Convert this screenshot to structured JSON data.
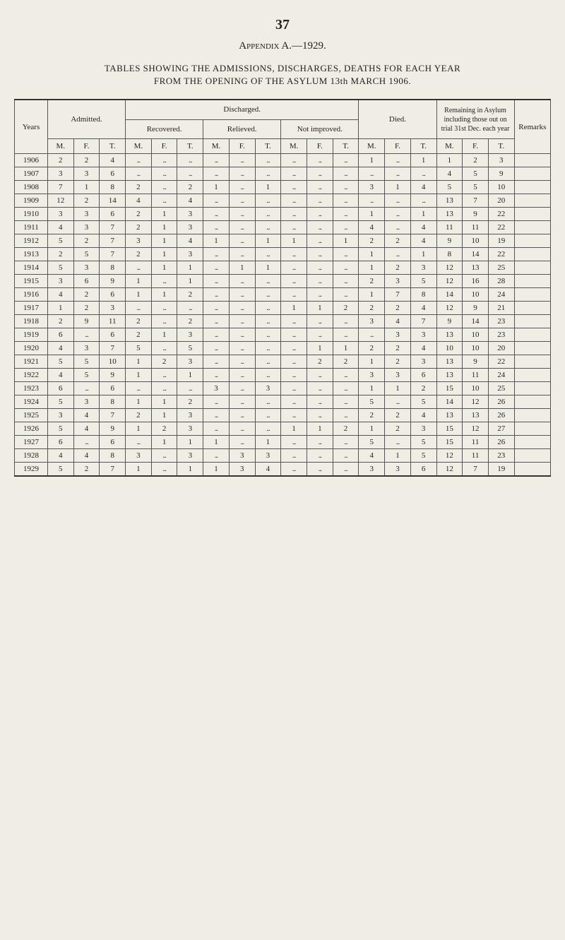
{
  "page_number": "37",
  "appendix": "Appendix A.—1929.",
  "title_line1": "TABLES SHOWING THE ADMISSIONS, DISCHARGES, DEATHS FOR EACH YEAR",
  "title_line2": "FROM THE OPENING OF THE ASYLUM 13th MARCH 1906.",
  "headers": {
    "years": "Years",
    "admitted": "Admitted.",
    "discharged": "Discharged.",
    "recovered": "Recovered.",
    "relieved": "Relieved.",
    "not_improved": "Not improved.",
    "died": "Died.",
    "remaining": "Remaining in Asylum inclu­ding those out on trial 31st Dec. each year",
    "remarks": "Remarks",
    "m": "M.",
    "f": "F.",
    "t": "T."
  },
  "rows": [
    {
      "year": "1906",
      "adm": [
        "2",
        "2",
        "4"
      ],
      "rec": [
        "...",
        "...",
        "..."
      ],
      "rel": [
        "...",
        "...",
        "..."
      ],
      "nim": [
        "...",
        "...",
        "..."
      ],
      "die": [
        "1",
        "...",
        "1"
      ],
      "rem": [
        "1",
        "2",
        "3"
      ]
    },
    {
      "year": "1907",
      "adm": [
        "3",
        "3",
        "6"
      ],
      "rec": [
        "...",
        "...",
        "..."
      ],
      "rel": [
        "...",
        "...",
        "..."
      ],
      "nim": [
        "...",
        "...",
        "..."
      ],
      "die": [
        "...",
        "...",
        "..."
      ],
      "rem": [
        "4",
        "5",
        "9"
      ]
    },
    {
      "year": "1908",
      "adm": [
        "7",
        "1",
        "8"
      ],
      "rec": [
        "2",
        "...",
        "2"
      ],
      "rel": [
        "1",
        "...",
        "1"
      ],
      "nim": [
        "...",
        "...",
        "..."
      ],
      "die": [
        "3",
        "1",
        "4"
      ],
      "rem": [
        "5",
        "5",
        "10"
      ]
    },
    {
      "year": "1909",
      "adm": [
        "12",
        "2",
        "14"
      ],
      "rec": [
        "4",
        "...",
        "4"
      ],
      "rel": [
        "...",
        "...",
        "..."
      ],
      "nim": [
        "...",
        "...",
        "..."
      ],
      "die": [
        "...",
        "...",
        "..."
      ],
      "rem": [
        "13",
        "7",
        "20"
      ]
    },
    {
      "year": "1910",
      "adm": [
        "3",
        "3",
        "6"
      ],
      "rec": [
        "2",
        "1",
        "3"
      ],
      "rel": [
        "...",
        "...",
        "..."
      ],
      "nim": [
        "...",
        "...",
        "..."
      ],
      "die": [
        "1",
        "...",
        "1"
      ],
      "rem": [
        "13",
        "9",
        "22"
      ]
    },
    {
      "year": "1911",
      "adm": [
        "4",
        "3",
        "7"
      ],
      "rec": [
        "2",
        "1",
        "3"
      ],
      "rel": [
        "...",
        "...",
        "..."
      ],
      "nim": [
        "...",
        "...",
        "..."
      ],
      "die": [
        "4",
        "...",
        "4"
      ],
      "rem": [
        "11",
        "11",
        "22"
      ]
    },
    {
      "year": "1912",
      "adm": [
        "5",
        "2",
        "7"
      ],
      "rec": [
        "3",
        "1",
        "4"
      ],
      "rel": [
        "1",
        "...",
        "1"
      ],
      "nim": [
        "1",
        "...",
        "1"
      ],
      "die": [
        "2",
        "2",
        "4"
      ],
      "rem": [
        "9",
        "10",
        "19"
      ]
    },
    {
      "year": "1913",
      "adm": [
        "2",
        "5",
        "7"
      ],
      "rec": [
        "2",
        "1",
        "3"
      ],
      "rel": [
        "...",
        "...",
        "..."
      ],
      "nim": [
        "...",
        "...",
        "..."
      ],
      "die": [
        "1",
        "...",
        "1"
      ],
      "rem": [
        "8",
        "14",
        "22"
      ]
    },
    {
      "year": "1914",
      "adm": [
        "5",
        "3",
        "8"
      ],
      "rec": [
        "...",
        "1",
        "1"
      ],
      "rel": [
        "...",
        "1",
        "1"
      ],
      "nim": [
        "...",
        "...",
        "..."
      ],
      "die": [
        "1",
        "2",
        "3"
      ],
      "rem": [
        "12",
        "13",
        "25"
      ]
    },
    {
      "year": "1915",
      "adm": [
        "3",
        "6",
        "9"
      ],
      "rec": [
        "1",
        "...",
        "1"
      ],
      "rel": [
        "...",
        "...",
        "..."
      ],
      "nim": [
        "...",
        "...",
        "..."
      ],
      "die": [
        "2",
        "3",
        "5"
      ],
      "rem": [
        "12",
        "16",
        "28"
      ]
    },
    {
      "year": "1916",
      "adm": [
        "4",
        "2",
        "6"
      ],
      "rec": [
        "1",
        "1",
        "2"
      ],
      "rel": [
        "...",
        "...",
        "..."
      ],
      "nim": [
        "...",
        "...",
        "..."
      ],
      "die": [
        "1",
        "7",
        "8"
      ],
      "rem": [
        "14",
        "10",
        "24"
      ]
    },
    {
      "year": "1917",
      "adm": [
        "1",
        "2",
        "3"
      ],
      "rec": [
        "...",
        "...",
        "..."
      ],
      "rel": [
        "...",
        "...",
        "..."
      ],
      "nim": [
        "1",
        "1",
        "2"
      ],
      "die": [
        "2",
        "2",
        "4"
      ],
      "rem": [
        "12",
        "9",
        "21"
      ]
    },
    {
      "year": "1918",
      "adm": [
        "2",
        "9",
        "11"
      ],
      "rec": [
        "2",
        "...",
        "2"
      ],
      "rel": [
        "...",
        "...",
        "..."
      ],
      "nim": [
        "...",
        "...",
        "..."
      ],
      "die": [
        "3",
        "4",
        "7"
      ],
      "rem": [
        "9",
        "14",
        "23"
      ]
    },
    {
      "year": "1919",
      "adm": [
        "6",
        "...",
        "6"
      ],
      "rec": [
        "2",
        "1",
        "3"
      ],
      "rel": [
        "...",
        "...",
        "..."
      ],
      "nim": [
        "...",
        "...",
        "..."
      ],
      "die": [
        "...",
        "3",
        "3"
      ],
      "rem": [
        "13",
        "10",
        "23"
      ]
    },
    {
      "year": "1920",
      "adm": [
        "4",
        "3",
        "7"
      ],
      "rec": [
        "5",
        "...",
        "5"
      ],
      "rel": [
        "...",
        "...",
        "..."
      ],
      "nim": [
        "...",
        "1",
        "1"
      ],
      "die": [
        "2",
        "2",
        "4"
      ],
      "rem": [
        "10",
        "10",
        "20"
      ]
    },
    {
      "year": "1921",
      "adm": [
        "5",
        "5",
        "10"
      ],
      "rec": [
        "1",
        "2",
        "3"
      ],
      "rel": [
        "...",
        "...",
        "..."
      ],
      "nim": [
        "...",
        "2",
        "2"
      ],
      "die": [
        "1",
        "2",
        "3"
      ],
      "rem": [
        "13",
        "9",
        "22"
      ]
    },
    {
      "year": "1922",
      "adm": [
        "4",
        "5",
        "9"
      ],
      "rec": [
        "1",
        "...",
        "1"
      ],
      "rel": [
        "...",
        "...",
        "..."
      ],
      "nim": [
        "...",
        "...",
        "..."
      ],
      "die": [
        "3",
        "3",
        "6"
      ],
      "rem": [
        "13",
        "11",
        "24"
      ]
    },
    {
      "year": "1923",
      "adm": [
        "6",
        "...",
        "6"
      ],
      "rec": [
        "...",
        "...",
        "..."
      ],
      "rel": [
        "3",
        "...",
        "3"
      ],
      "nim": [
        "...",
        "...",
        "..."
      ],
      "die": [
        "1",
        "1",
        "2"
      ],
      "rem": [
        "15",
        "10",
        "25"
      ]
    },
    {
      "year": "1924",
      "adm": [
        "5",
        "3",
        "8"
      ],
      "rec": [
        "1",
        "1",
        "2"
      ],
      "rel": [
        "...",
        "...",
        "..."
      ],
      "nim": [
        "...",
        "...",
        "..."
      ],
      "die": [
        "5",
        "...",
        "5"
      ],
      "rem": [
        "14",
        "12",
        "26"
      ]
    },
    {
      "year": "1925",
      "adm": [
        "3",
        "4",
        "7"
      ],
      "rec": [
        "2",
        "1",
        "3"
      ],
      "rel": [
        "...",
        "...",
        "..."
      ],
      "nim": [
        "...",
        "...",
        "..."
      ],
      "die": [
        "2",
        "2",
        "4"
      ],
      "rem": [
        "13",
        "13",
        "26"
      ]
    },
    {
      "year": "1926",
      "adm": [
        "5",
        "4",
        "9"
      ],
      "rec": [
        "1",
        "2",
        "3"
      ],
      "rel": [
        "...",
        "...",
        "..."
      ],
      "nim": [
        "1",
        "1",
        "2"
      ],
      "die": [
        "1",
        "2",
        "3"
      ],
      "rem": [
        "15",
        "12",
        "27"
      ]
    },
    {
      "year": "1927",
      "adm": [
        "6",
        "...",
        "6"
      ],
      "rec": [
        "...",
        "1",
        "1"
      ],
      "rel": [
        "1",
        "...",
        "1"
      ],
      "nim": [
        "...",
        "...",
        "..."
      ],
      "die": [
        "5",
        "...",
        "5"
      ],
      "rem": [
        "15",
        "11",
        "26"
      ]
    },
    {
      "year": "1928",
      "adm": [
        "4",
        "4",
        "8"
      ],
      "rec": [
        "3",
        "...",
        "3"
      ],
      "rel": [
        "...",
        "3",
        "3"
      ],
      "nim": [
        "...",
        "...",
        "..."
      ],
      "die": [
        "4",
        "1",
        "5"
      ],
      "rem": [
        "12",
        "11",
        "23"
      ]
    },
    {
      "year": "1929",
      "adm": [
        "5",
        "2",
        "7"
      ],
      "rec": [
        "1",
        "...",
        "1"
      ],
      "rel": [
        "1",
        "3",
        "4"
      ],
      "nim": [
        "...",
        "...",
        "..."
      ],
      "die": [
        "3",
        "3",
        "6"
      ],
      "rem": [
        "12",
        "7",
        "19"
      ]
    }
  ]
}
